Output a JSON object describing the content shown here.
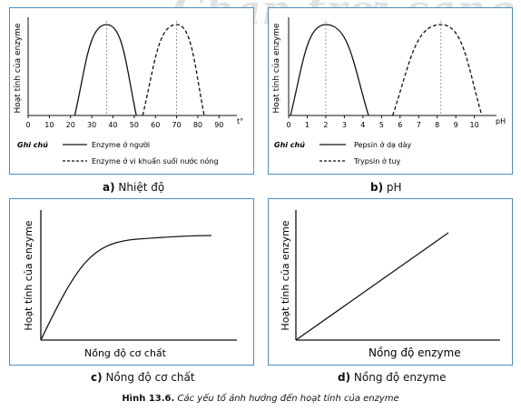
{
  "watermark": "Chân trời sáng tạo",
  "captions": {
    "a_letter": "a)",
    "a_text": "Nhiệt độ",
    "b_letter": "b)",
    "b_text": "pH",
    "c_letter": "c)",
    "c_text": "Nồng độ cơ chất",
    "d_letter": "d)",
    "d_text": "Nồng độ enzyme",
    "figure_number": "Hình 13.6.",
    "figure_text": "Các yếu tố ảnh hưởng đến hoạt tính của enzyme"
  },
  "colors": {
    "frame": "#4a8fc4",
    "line": "#111111",
    "marker": "#888888"
  },
  "chart_data": [
    {
      "id": "a",
      "type": "line",
      "ylabel": "Hoạt tính của enzyme",
      "xlabel": "t°",
      "x_ticks": [
        0,
        10,
        20,
        30,
        40,
        50,
        60,
        70,
        80,
        90
      ],
      "x_tick_labels": [
        "0",
        "10",
        "20",
        "30",
        "40",
        "50",
        "60",
        "70",
        "80",
        "90"
      ],
      "xlim": [
        0,
        95
      ],
      "legend_title": "Ghi chú",
      "series": [
        {
          "name": "Enzyme ở người",
          "style": "solid",
          "x_start": 22,
          "x_peak": 37,
          "x_end": 51
        },
        {
          "name": "Enzyme ở vi khuẩn suối nước nóng",
          "style": "dashed",
          "x_start": 54,
          "x_peak": 70,
          "x_end": 83
        }
      ]
    },
    {
      "id": "b",
      "type": "line",
      "ylabel": "Hoạt tính của enzyme",
      "xlabel": "pH",
      "x_ticks": [
        0,
        1,
        2,
        3,
        4,
        5,
        6,
        7,
        8,
        9,
        10
      ],
      "x_tick_labels": [
        "0",
        "1",
        "2",
        "3",
        "4",
        "5",
        "6",
        "7",
        "8",
        "9",
        "10"
      ],
      "xlim": [
        0,
        10.8
      ],
      "legend_title": "Ghi chú",
      "series": [
        {
          "name": "Pepsin ở dạ dày",
          "style": "solid",
          "x_start": 0.1,
          "x_peak": 2,
          "x_end": 4.3
        },
        {
          "name": "Trypsin ở tuỵ",
          "style": "dashed",
          "x_start": 5.6,
          "x_peak": 8.2,
          "x_end": 10.4
        }
      ]
    },
    {
      "id": "c",
      "type": "line",
      "ylabel": "Hoạt tính của enzyme",
      "xlabel": "Nồng độ cơ chất",
      "series": [
        {
          "name": "",
          "shape": "saturation"
        }
      ]
    },
    {
      "id": "d",
      "type": "line",
      "ylabel": "Hoạt tính của enzyme",
      "xlabel": "Nồng độ enzyme",
      "series": [
        {
          "name": "",
          "shape": "linear"
        }
      ]
    }
  ]
}
